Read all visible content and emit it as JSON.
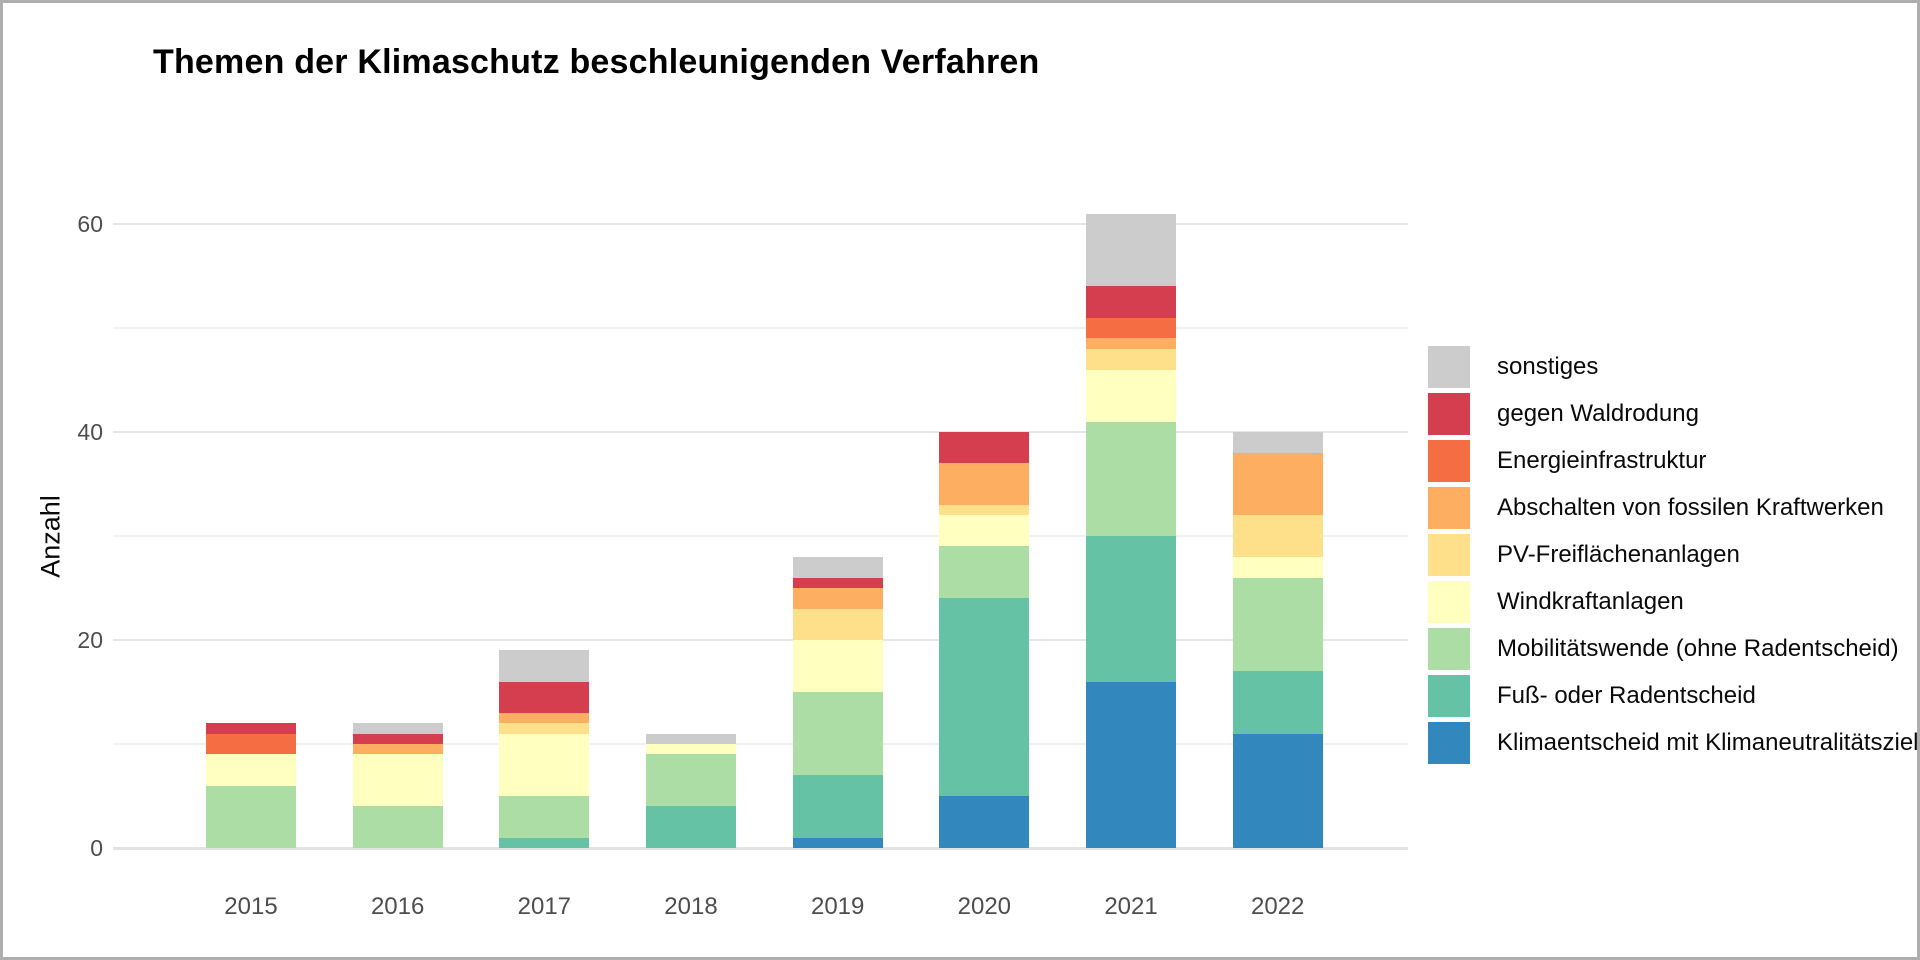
{
  "title": "Themen der Klimaschutz beschleunigenden Verfahren",
  "chart_data": {
    "type": "bar",
    "stacked": true,
    "title": "Themen der Klimaschutz beschleunigenden Verfahren",
    "xlabel": "",
    "ylabel": "Anzahl",
    "categories": [
      "2015",
      "2016",
      "2017",
      "2018",
      "2019",
      "2020",
      "2021",
      "2022"
    ],
    "y_ticks": [
      0,
      20,
      40,
      60
    ],
    "y_minor_ticks": [
      10,
      30,
      50
    ],
    "ylim": [
      0,
      63
    ],
    "grid": true,
    "legend_position": "right",
    "series": [
      {
        "name": "Klimaentscheid mit Klimaneutralitätsziel",
        "color": "#3288BD",
        "values": [
          0,
          0,
          0,
          0,
          1,
          5,
          16,
          11
        ]
      },
      {
        "name": "Fuß- oder Radentscheid",
        "color": "#66C2A5",
        "values": [
          0,
          0,
          1,
          4,
          6,
          19,
          14,
          6
        ]
      },
      {
        "name": "Mobilitätswende (ohne Radentscheid)",
        "color": "#ABDDA4",
        "values": [
          6,
          4,
          4,
          5,
          8,
          5,
          11,
          9
        ]
      },
      {
        "name": "Windkraftanlagen",
        "color": "#FFFFBF",
        "values": [
          3,
          5,
          6,
          1,
          5,
          3,
          5,
          2
        ]
      },
      {
        "name": "PV-Freiflächenanlagen",
        "color": "#FEE08B",
        "values": [
          0,
          0,
          1,
          0,
          3,
          1,
          2,
          4
        ]
      },
      {
        "name": "Abschalten von fossilen Kraftwerken",
        "color": "#FDAE61",
        "values": [
          0,
          1,
          1,
          0,
          2,
          4,
          1,
          6
        ]
      },
      {
        "name": "Energieinfrastruktur",
        "color": "#F46D43",
        "values": [
          2,
          0,
          0,
          0,
          0,
          0,
          2,
          0
        ]
      },
      {
        "name": "gegen Waldrodung",
        "color": "#D53E4F",
        "values": [
          1,
          1,
          3,
          0,
          1,
          3,
          3,
          0
        ]
      },
      {
        "name": "sonstiges",
        "color": "#CCCCCC",
        "values": [
          0,
          1,
          3,
          1,
          2,
          0,
          7,
          2
        ]
      }
    ],
    "totals": [
      12,
      12,
      19,
      11,
      28,
      40,
      61,
      40
    ]
  },
  "legend_order_note": "legend shown top-to-bottom is reverse of stacking order",
  "colors": {
    "background": "#FFFFFF",
    "frame_border": "#AEAEAE",
    "grid_major": "#E6E6E6",
    "grid_minor": "#F1F1F1",
    "axis_text": "#4D4D4D",
    "title_text": "#000000"
  }
}
